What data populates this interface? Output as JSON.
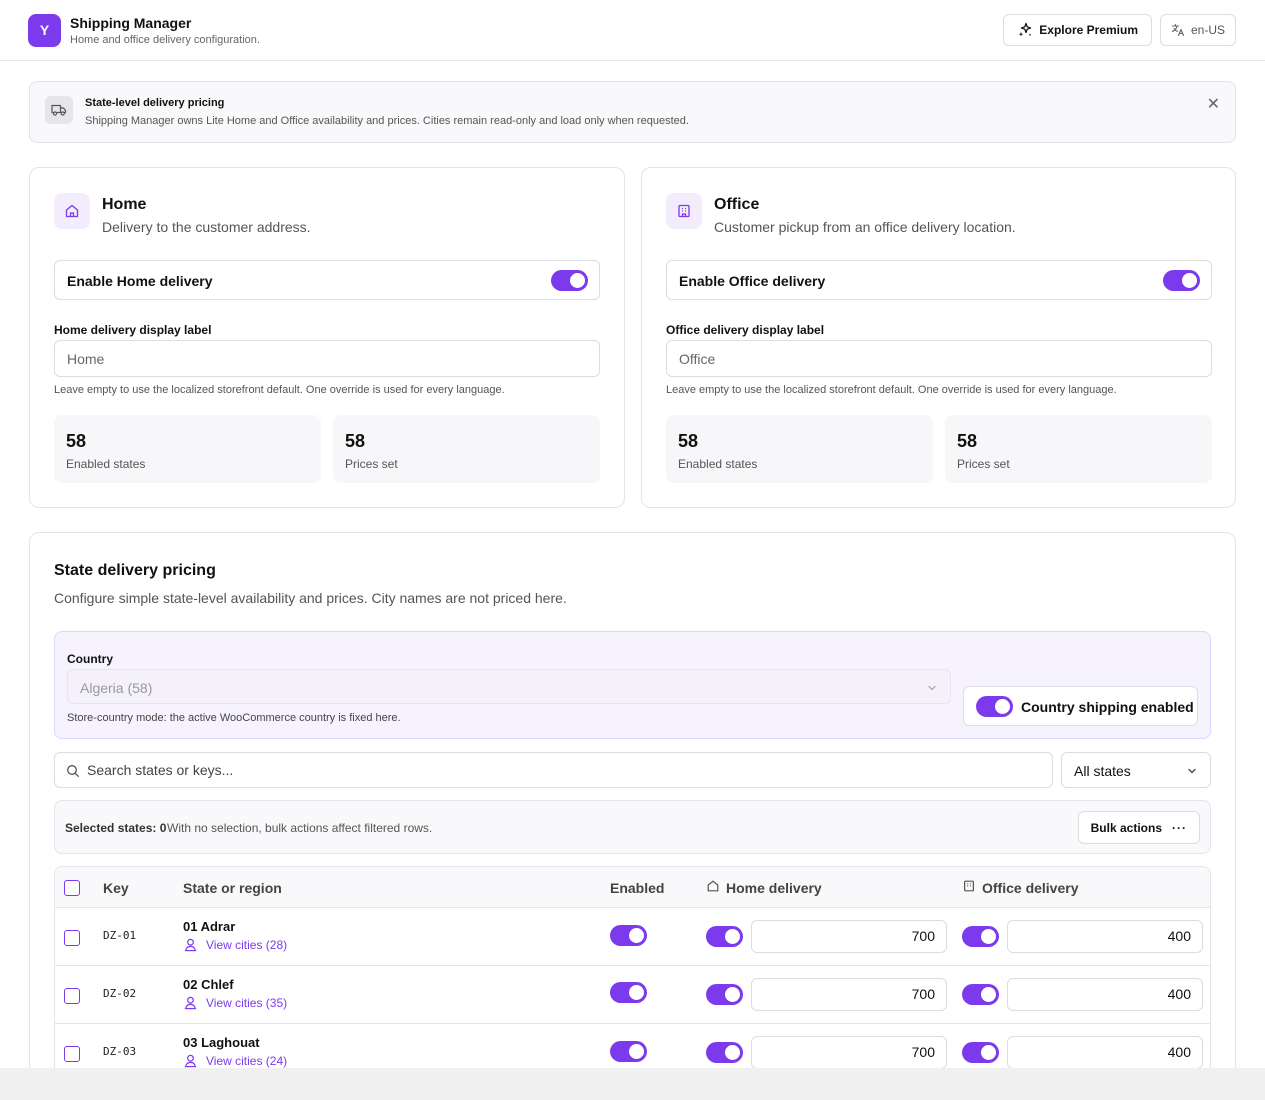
{
  "app": {
    "logo_letter": "Y",
    "title": "Shipping Manager",
    "subtitle": "Home and office delivery configuration.",
    "premium_label": "Explore Premium",
    "locale_label": "en-US"
  },
  "banner": {
    "title": "State-level delivery pricing",
    "text": "Shipping Manager owns Lite Home and Office availability and prices. Cities remain read-only and load only when requested.",
    "close_glyph": "✕"
  },
  "home": {
    "title": "Home",
    "subtitle": "Delivery to the customer address.",
    "enable_label": "Enable Home delivery",
    "enabled": true,
    "field_label": "Home delivery display label",
    "field_placeholder": "Home",
    "field_help": "Leave empty to use the localized storefront default. One override is used for every language.",
    "stats": [
      {
        "value": "58",
        "label": "Enabled states"
      },
      {
        "value": "58",
        "label": "Prices set"
      }
    ]
  },
  "office": {
    "title": "Office",
    "subtitle": "Customer pickup from an office delivery location.",
    "enable_label": "Enable Office delivery",
    "enabled": true,
    "field_label": "Office delivery display label",
    "field_placeholder": "Office",
    "field_help": "Leave empty to use the localized storefront default. One override is used for every language.",
    "stats": [
      {
        "value": "58",
        "label": "Enabled states"
      },
      {
        "value": "58",
        "label": "Prices set"
      }
    ]
  },
  "pricing": {
    "title": "State delivery pricing",
    "subtitle": "Configure simple state-level availability and prices. City names are not priced here.",
    "country_label": "Country",
    "country_value": "Algeria (58)",
    "country_help": "Store-country mode: the active WooCommerce country is fixed here.",
    "country_enabled_label": "Country shipping enabled",
    "search_placeholder": "Search states or keys...",
    "filter_value": "All states",
    "selected_label": "Selected states: 0",
    "selected_help": "With no selection, bulk actions affect filtered rows.",
    "bulk_label": "Bulk actions",
    "bulk_dots": "···",
    "columns": {
      "key": "Key",
      "state": "State or region",
      "enabled": "Enabled",
      "home": "Home delivery",
      "office": "Office delivery"
    },
    "rows": [
      {
        "key": "DZ-01",
        "state": "01 Adrar",
        "cities": "View cities (28)",
        "home_price": "700",
        "office_price": "400"
      },
      {
        "key": "DZ-02",
        "state": "02 Chlef",
        "cities": "View cities (35)",
        "home_price": "700",
        "office_price": "400"
      },
      {
        "key": "DZ-03",
        "state": "03 Laghouat",
        "cities": "View cities (24)",
        "home_price": "700",
        "office_price": "400"
      }
    ]
  },
  "colors": {
    "accent": "#7c3aed",
    "accent_soft": "#f2ecfd"
  }
}
